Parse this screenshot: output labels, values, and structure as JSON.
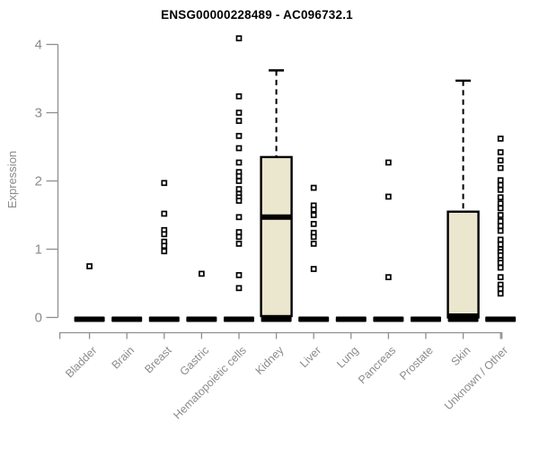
{
  "page": {
    "background": "#ffffff"
  },
  "chart_data": {
    "type": "boxplot",
    "title": "ENSG00000228489 - AC096732.1",
    "xlabel": "",
    "ylabel": "Expression",
    "ylim": [
      0,
      4
    ],
    "yticks": [
      0,
      1,
      2,
      3,
      4
    ],
    "grid": false,
    "legend": "none",
    "colors": {
      "box_fill": "#ebe6ce",
      "box_stroke": "#000000",
      "axis": "#8f8f8f",
      "labels": "#8b8b8b",
      "title": "#000000",
      "outlier_fill": "#ffffff",
      "outlier_stroke": "#000000"
    },
    "categories": [
      "Bladder",
      "Brain",
      "Breast",
      "Gastric",
      "Hematopoietic cells",
      "Kidney",
      "Liver",
      "Lung",
      "Pancreas",
      "Prostate",
      "Skin",
      "Unknown / Other"
    ],
    "series": [
      {
        "category": "Bladder",
        "box": {
          "collapsed": true,
          "q1": 0,
          "median": 0,
          "q3": 0,
          "whisker_high": 0
        },
        "outliers": [
          0.75
        ]
      },
      {
        "category": "Brain",
        "box": {
          "collapsed": true,
          "q1": 0,
          "median": 0,
          "q3": 0,
          "whisker_high": 0
        },
        "outliers": []
      },
      {
        "category": "Breast",
        "box": {
          "collapsed": true,
          "q1": 0,
          "median": 0,
          "q3": 0,
          "whisker_high": 0
        },
        "outliers": [
          1.97,
          1.52,
          1.28,
          1.22,
          1.11,
          1.05,
          0.97
        ]
      },
      {
        "category": "Gastric",
        "box": {
          "collapsed": true,
          "q1": 0,
          "median": 0,
          "q3": 0,
          "whisker_high": 0
        },
        "outliers": [
          0.64
        ]
      },
      {
        "category": "Hematopoietic cells",
        "box": {
          "collapsed": true,
          "q1": 0,
          "median": 0,
          "q3": 0,
          "whisker_high": 0
        },
        "outliers": [
          4.09,
          3.24,
          3.0,
          2.88,
          2.66,
          2.48,
          2.27,
          2.13,
          2.07,
          2.0,
          1.88,
          1.81,
          1.76,
          1.71,
          1.47,
          1.25,
          1.18,
          1.08,
          0.62,
          0.43
        ]
      },
      {
        "category": "Kidney",
        "box": {
          "collapsed": false,
          "q1": 0.02,
          "median": 1.47,
          "q3": 2.35,
          "whisker_high": 3.62
        },
        "outliers": []
      },
      {
        "category": "Liver",
        "box": {
          "collapsed": true,
          "q1": 0,
          "median": 0,
          "q3": 0,
          "whisker_high": 0
        },
        "outliers": [
          1.9,
          1.64,
          1.58,
          1.5,
          1.37,
          1.24,
          1.18,
          1.08,
          0.71
        ]
      },
      {
        "category": "Lung",
        "box": {
          "collapsed": true,
          "q1": 0,
          "median": 0,
          "q3": 0,
          "whisker_high": 0
        },
        "outliers": []
      },
      {
        "category": "Pancreas",
        "box": {
          "collapsed": true,
          "q1": 0,
          "median": 0,
          "q3": 0,
          "whisker_high": 0
        },
        "outliers": [
          2.27,
          1.77,
          0.59
        ]
      },
      {
        "category": "Prostate",
        "box": {
          "collapsed": true,
          "q1": 0,
          "median": 0,
          "q3": 0,
          "whisker_high": 0
        },
        "outliers": []
      },
      {
        "category": "Skin",
        "box": {
          "collapsed": false,
          "q1": 0,
          "median": 0.02,
          "q3": 1.55,
          "whisker_high": 3.47
        },
        "outliers": []
      },
      {
        "category": "Unknown / Other",
        "box": {
          "collapsed": true,
          "q1": 0,
          "median": 0,
          "q3": 0,
          "whisker_high": 0
        },
        "outliers": [
          2.62,
          2.42,
          2.3,
          2.19,
          2.01,
          1.94,
          1.87,
          1.76,
          1.67,
          1.6,
          1.5,
          1.41,
          1.34,
          1.27,
          1.14,
          1.07,
          1.0,
          0.96,
          0.91,
          0.84,
          0.8,
          0.73,
          0.59,
          0.48,
          0.42,
          0.35
        ]
      }
    ]
  }
}
